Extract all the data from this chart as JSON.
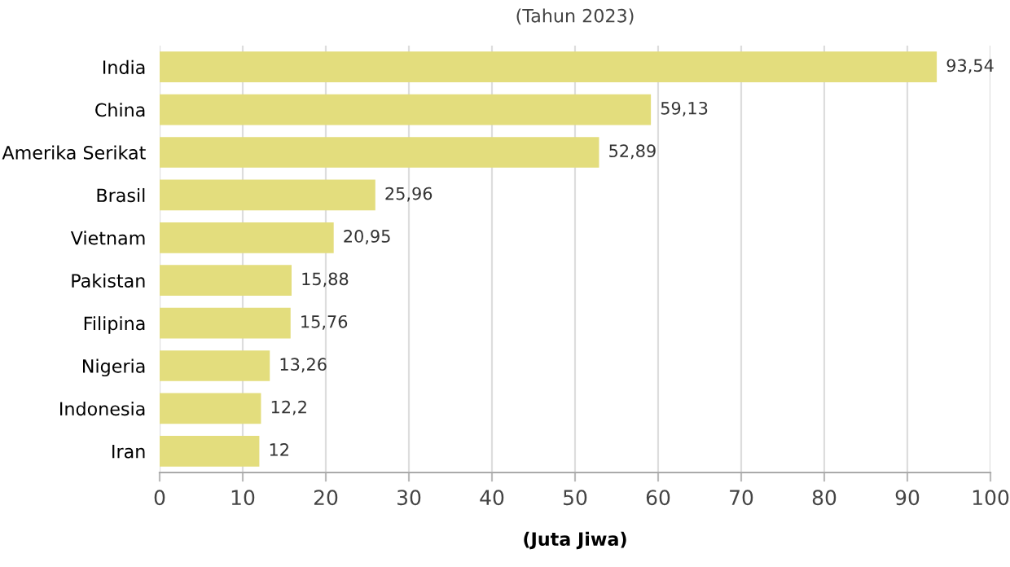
{
  "chart_data": {
    "type": "bar",
    "orientation": "horizontal",
    "subtitle": "(Tahun 2023)",
    "xlabel": "(Juta Jiwa)",
    "categories": [
      "India",
      "China",
      "Amerika Serikat",
      "Brasil",
      "Vietnam",
      "Pakistan",
      "Filipina",
      "Nigeria",
      "Indonesia",
      "Iran"
    ],
    "values": [
      93.54,
      59.13,
      52.89,
      25.96,
      20.95,
      15.88,
      15.76,
      13.26,
      12.2,
      12
    ],
    "value_labels": [
      "93,54",
      "59,13",
      "52,89",
      "25,96",
      "20,95",
      "15,88",
      "15,76",
      "13,26",
      "12,2",
      "12"
    ],
    "color": "#e3dd7d",
    "xlim": [
      0,
      100
    ],
    "xticks": [
      0,
      10,
      20,
      30,
      40,
      50,
      60,
      70,
      80,
      90,
      100
    ],
    "grid": "x",
    "legend": false
  }
}
